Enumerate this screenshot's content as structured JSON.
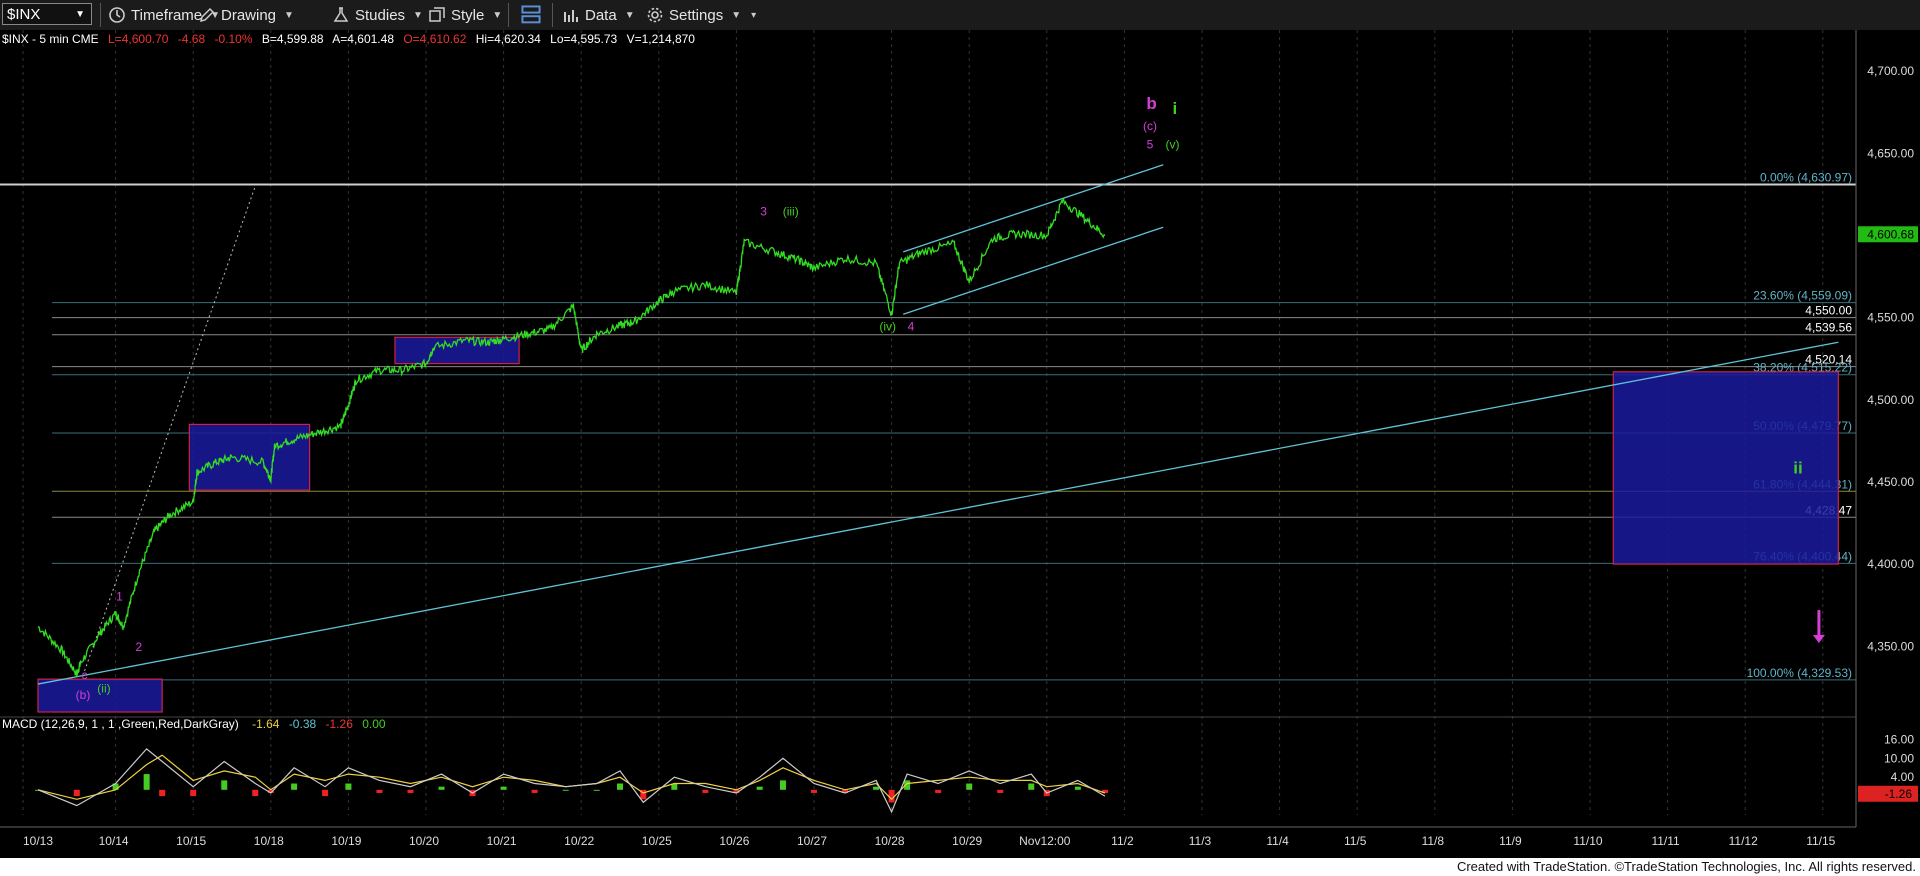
{
  "toolbar": {
    "symbol": "$INX",
    "timeframe": "Timeframe",
    "drawing": "Drawing",
    "studies": "Studies",
    "style": "Style",
    "data": "Data",
    "settings": "Settings"
  },
  "header": {
    "symbol_info": "$INX - 5 min  CME",
    "last": "L=4,600.70",
    "change": "-4.68",
    "change_pct": "-0.10%",
    "bid": "B=4,599.88",
    "ask": "A=4,601.48",
    "open": "O=4,610.62",
    "high": "Hi=4,620.34",
    "low": "Lo=4,595.73",
    "volume": "V=1,214,870"
  },
  "footer": {
    "credit": "Created with TradeStation. ©TradeStation Technologies, Inc. All rights reserved."
  },
  "colors": {
    "background": "#000000",
    "price": "#33dd22",
    "trendline": "#5fc4d6",
    "box_fill": "#1a1a9e",
    "box_edge": "#d0204a",
    "magenta": "#d63fd6",
    "wave_green": "#44cc22",
    "fib_text": "#5fb4c6",
    "level_text": "#ffffff",
    "macd_up": "#44cc22",
    "macd_down": "#ee2222"
  },
  "chart_data": [
    {
      "type": "line",
      "title": "$INX - 5 min",
      "ylim": [
        4310,
        4725
      ],
      "x_tick_labels": [
        "10/13",
        "10/14",
        "10/15",
        "10/18",
        "10/19",
        "10/20",
        "10/21",
        "10/22",
        "10/25",
        "10/26",
        "10/27",
        "10/28",
        "10/29",
        "Nov12:00",
        "11/2",
        "11/3",
        "11/4",
        "11/5",
        "11/8",
        "11/9",
        "11/10",
        "11/11",
        "11/12",
        "11/15"
      ],
      "y_tick_labels": [
        "4,700.00",
        "4,650.00",
        "4,600.00",
        "4,550.00",
        "4,500.00",
        "4,450.00",
        "4,400.00",
        "4,350.00"
      ],
      "y_ticks": [
        4700,
        4650,
        4600,
        4550,
        4500,
        4450,
        4400,
        4350
      ],
      "last_price": 4600.7,
      "last_price_label": "4,600.68",
      "price_series": {
        "x": [
          0.0,
          0.3,
          0.5,
          0.55,
          0.8,
          1.0,
          1.1,
          1.3,
          1.5,
          1.7,
          2.0,
          2.05,
          2.3,
          2.5,
          2.9,
          3.0,
          3.05,
          3.3,
          3.6,
          3.9,
          4.0,
          4.1,
          4.4,
          4.7,
          5.0,
          5.1,
          5.5,
          5.8,
          6.0,
          6.3,
          6.6,
          6.9,
          7.0,
          7.2,
          7.5,
          7.7,
          8.0,
          8.2,
          8.6,
          9.0,
          9.1,
          9.5,
          9.8,
          10.0,
          10.4,
          10.8,
          11.0,
          11.1,
          11.4,
          11.8,
          12.0,
          12.3,
          12.6,
          13.0,
          13.2,
          13.5,
          13.75
        ],
        "y": [
          4362,
          4348,
          4333,
          4340,
          4358,
          4370,
          4362,
          4395,
          4420,
          4430,
          4438,
          4456,
          4462,
          4465,
          4462,
          4452,
          4472,
          4476,
          4480,
          4484,
          4497,
          4512,
          4518,
          4518,
          4522,
          4532,
          4536,
          4535,
          4537,
          4540,
          4543,
          4557,
          4530,
          4540,
          4545,
          4548,
          4560,
          4566,
          4570,
          4565,
          4596,
          4590,
          4585,
          4580,
          4586,
          4583,
          4552,
          4583,
          4590,
          4595,
          4572,
          4598,
          4601,
          4600,
          4621,
          4610,
          4600
        ]
      },
      "horizontal_levels": [
        {
          "value": 4630.97,
          "label": "0.00% (4,630.97)",
          "kind": "fib"
        },
        {
          "value": 4559.09,
          "label": "23.60% (4,559.09)",
          "kind": "fib"
        },
        {
          "value": 4550.0,
          "label": "4,550.00",
          "kind": "level"
        },
        {
          "value": 4539.56,
          "label": "4,539.56",
          "kind": "level"
        },
        {
          "value": 4520.14,
          "label": "4,520.14",
          "kind": "level"
        },
        {
          "value": 4515.22,
          "label": "38.20% (4,515.22)",
          "kind": "fib"
        },
        {
          "value": 4479.77,
          "label": "50.00% (4,479.77)",
          "kind": "fib"
        },
        {
          "value": 4444.31,
          "label": "61.80% (4,444.31)",
          "kind": "fib"
        },
        {
          "value": 4428.47,
          "label": "4,428.47",
          "kind": "level"
        },
        {
          "value": 4400.44,
          "label": "76.40% (4,400.44)",
          "kind": "fib"
        },
        {
          "value": 4329.53,
          "label": "100.00% (4,329.53)",
          "kind": "fib"
        }
      ],
      "boxes": [
        {
          "x0": 0.0,
          "x1": 1.6,
          "y0": 4310,
          "y1": 4330
        },
        {
          "x0": 1.95,
          "x1": 3.5,
          "y0": 4445,
          "y1": 4485
        },
        {
          "x0": 4.6,
          "x1": 6.2,
          "y0": 4522,
          "y1": 4538
        },
        {
          "x0": 20.3,
          "x1": 23.2,
          "y0": 4400,
          "y1": 4517
        }
      ],
      "trendlines": [
        {
          "x0": 0.0,
          "y0": 4327,
          "x1": 23.2,
          "y1": 4535
        },
        {
          "x0": 11.15,
          "y0": 4590,
          "x1": 14.5,
          "y1": 4643
        },
        {
          "x0": 11.15,
          "y0": 4552,
          "x1": 14.5,
          "y1": 4605
        }
      ],
      "dotted_line": {
        "x0": 0.6,
        "y0": 4335,
        "x1": 2.8,
        "y1": 4630
      },
      "wave_labels": [
        {
          "text": "1",
          "x": 1.05,
          "y": 4378,
          "color": "magenta"
        },
        {
          "text": "2",
          "x": 1.3,
          "y": 4347,
          "color": "magenta"
        },
        {
          "text": "c",
          "x": 0.6,
          "y": 4330,
          "color": "magenta"
        },
        {
          "text": "(b)",
          "x": 0.58,
          "y": 4318,
          "color": "magenta"
        },
        {
          "text": "(ii)",
          "x": 0.85,
          "y": 4322,
          "color": "wave_green"
        },
        {
          "text": "3",
          "x": 9.35,
          "y": 4612,
          "color": "magenta"
        },
        {
          "text": "(iii)",
          "x": 9.7,
          "y": 4612,
          "color": "wave_green"
        },
        {
          "text": "(iv)",
          "x": 10.95,
          "y": 4542,
          "color": "wave_green"
        },
        {
          "text": "4",
          "x": 11.25,
          "y": 4542,
          "color": "magenta"
        },
        {
          "text": "b",
          "x": 14.35,
          "y": 4677,
          "color": "magenta",
          "bold": true,
          "big": true
        },
        {
          "text": "(c)",
          "x": 14.33,
          "y": 4664,
          "color": "magenta"
        },
        {
          "text": "5",
          "x": 14.33,
          "y": 4653,
          "color": "magenta"
        },
        {
          "text": "(v)",
          "x": 14.62,
          "y": 4653,
          "color": "wave_green"
        },
        {
          "text": "i",
          "x": 14.65,
          "y": 4674,
          "color": "wave_green",
          "bold": true,
          "big": true
        },
        {
          "text": "ii",
          "x": 22.68,
          "y": 4455,
          "color": "wave_green",
          "bold": true,
          "big": true
        }
      ],
      "arrow": {
        "x": 22.95,
        "y_top": 4372,
        "y_bottom": 4352,
        "direction": "down",
        "color": "magenta"
      }
    },
    {
      "type": "area",
      "title": "MACD (12,26,9, 1 , 1 ,Green,Red,DarkGray)",
      "values_text": [
        "-1.64",
        "-0.38",
        "-1.26",
        "0.00"
      ],
      "ylim": [
        -8,
        19
      ],
      "y_tick_labels": [
        "16.00",
        "10.00",
        "4.00"
      ],
      "y_ticks": [
        16,
        10,
        4
      ],
      "last_value_label": "-1.26",
      "x": [
        0,
        0.5,
        1.0,
        1.4,
        1.6,
        2.0,
        2.4,
        2.8,
        3.0,
        3.3,
        3.7,
        4.0,
        4.4,
        4.8,
        5.2,
        5.6,
        6.0,
        6.4,
        6.8,
        7.2,
        7.5,
        7.8,
        8.2,
        8.6,
        9.0,
        9.3,
        9.6,
        10.0,
        10.4,
        10.8,
        11.0,
        11.2,
        11.6,
        12.0,
        12.4,
        12.8,
        13.0,
        13.4,
        13.75
      ],
      "macd": [
        0,
        -5,
        2,
        13,
        9,
        1,
        9,
        2,
        -1,
        7,
        1,
        7,
        3,
        1,
        5,
        -1,
        5,
        2,
        1,
        2,
        6,
        -4,
        4,
        1,
        -1,
        4,
        10,
        2,
        -1,
        3,
        -7,
        5,
        2,
        6,
        2,
        5,
        -1,
        3,
        -2
      ],
      "signal": [
        0,
        -3,
        0,
        8,
        11,
        3,
        6,
        4,
        0,
        5,
        3,
        5,
        4,
        2,
        4,
        1,
        4,
        3,
        1,
        2,
        4,
        -1,
        2,
        2,
        0,
        3,
        7,
        3,
        0,
        2,
        -3,
        2,
        3,
        4,
        3,
        3,
        1,
        2,
        -1
      ]
    }
  ]
}
